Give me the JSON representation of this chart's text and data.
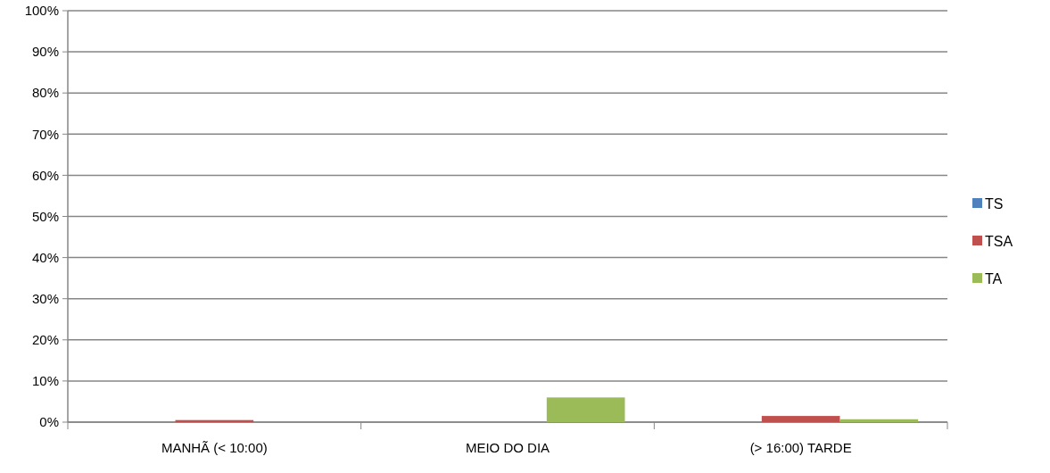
{
  "chart_data": {
    "type": "bar",
    "categories": [
      "MANHÃ (< 10:00)",
      "MEIO DO DIA",
      "(> 16:00) TARDE"
    ],
    "series": [
      {
        "name": "TS",
        "color": "#4f81bd",
        "values": [
          0,
          0,
          0
        ]
      },
      {
        "name": "TSA",
        "color": "#c0504d",
        "values": [
          0.5,
          0,
          1.5
        ]
      },
      {
        "name": "TA",
        "color": "#9bbb59",
        "values": [
          0,
          6,
          0.7
        ]
      }
    ],
    "ylim": [
      0,
      100
    ],
    "yticks": [
      {
        "value": 0,
        "label": "0%"
      },
      {
        "value": 10,
        "label": "10%"
      },
      {
        "value": 20,
        "label": "20%"
      },
      {
        "value": 30,
        "label": "30%"
      },
      {
        "value": 40,
        "label": "40%"
      },
      {
        "value": 50,
        "label": "50%"
      },
      {
        "value": 60,
        "label": "60%"
      },
      {
        "value": 70,
        "label": "70%"
      },
      {
        "value": 80,
        "label": "80%"
      },
      {
        "value": 90,
        "label": "90%"
      },
      {
        "value": 100,
        "label": "100%"
      }
    ],
    "grid": "y",
    "legend": "right"
  }
}
